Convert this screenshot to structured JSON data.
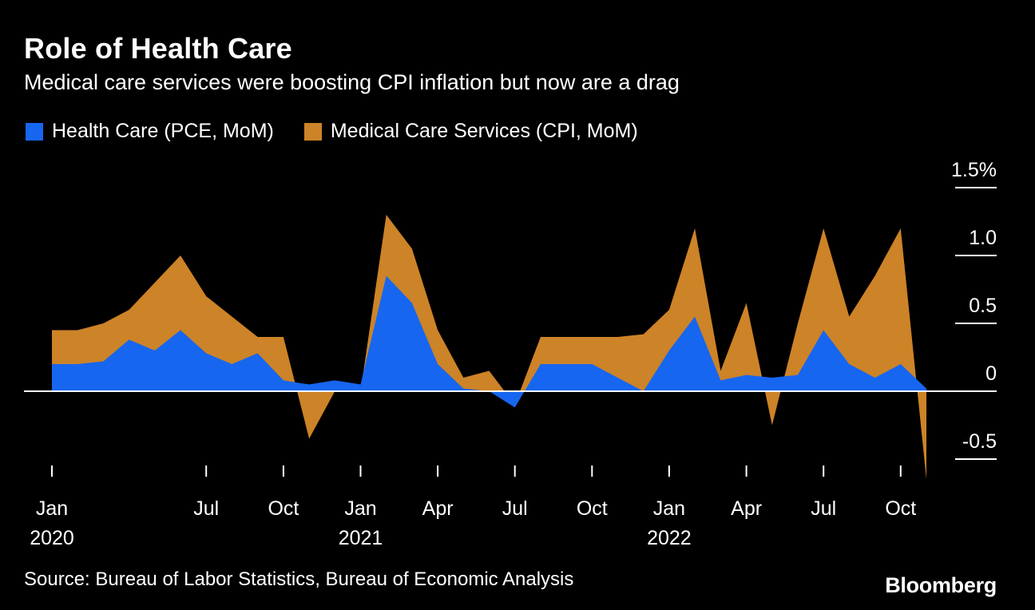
{
  "header": {
    "title": "Role of Health Care",
    "subtitle": "Medical care services were boosting CPI inflation but now are a drag"
  },
  "colors": {
    "background": "#000000",
    "foreground": "#ffffff",
    "blue": "#1766f0",
    "orange": "#cd8327"
  },
  "chart_data": {
    "type": "area",
    "title": "Role of Health Care",
    "subtitle": "Medical care services were boosting CPI inflation but now are a drag",
    "unit": "%",
    "baseline": 0,
    "legend_position": "top-left",
    "grid": "right-edge-ticks-only",
    "ylim": [
      -0.75,
      1.6
    ],
    "x": [
      "Jan 2020",
      "Feb 2020",
      "Mar 2020",
      "Apr 2020",
      "May 2020",
      "Jun 2020",
      "Jul 2020",
      "Aug 2020",
      "Sep 2020",
      "Oct 2020",
      "Nov 2020",
      "Dec 2020",
      "Jan 2021",
      "Feb 2021",
      "Mar 2021",
      "Apr 2021",
      "May 2021",
      "Jun 2021",
      "Jul 2021",
      "Aug 2021",
      "Sep 2021",
      "Oct 2021",
      "Nov 2021",
      "Dec 2021",
      "Jan 2022",
      "Feb 2022",
      "Mar 2022",
      "Apr 2022",
      "May 2022",
      "Jun 2022",
      "Jul 2022",
      "Aug 2022",
      "Sep 2022",
      "Oct 2022",
      "Nov 2022"
    ],
    "series": [
      {
        "name": "Health Care (PCE, MoM)",
        "color": "#1766f0",
        "values": [
          0.2,
          0.2,
          0.22,
          0.38,
          0.3,
          0.45,
          0.28,
          0.2,
          0.28,
          0.08,
          0.05,
          0.08,
          0.05,
          0.85,
          0.65,
          0.2,
          0.02,
          0.0,
          -0.12,
          0.2,
          0.2,
          0.2,
          0.1,
          0.0,
          0.3,
          0.55,
          0.08,
          0.12,
          0.1,
          0.12,
          0.45,
          0.2,
          0.1,
          0.2,
          0.02
        ]
      },
      {
        "name": "Medical Care Services (CPI, MoM)",
        "color": "#cd8327",
        "values": [
          0.45,
          0.45,
          0.5,
          0.6,
          0.8,
          1.0,
          0.7,
          0.55,
          0.4,
          0.4,
          -0.35,
          0.0,
          0.0,
          1.3,
          1.05,
          0.45,
          0.1,
          0.15,
          -0.1,
          0.4,
          0.4,
          0.4,
          0.4,
          0.42,
          0.6,
          1.2,
          0.15,
          0.65,
          -0.25,
          0.5,
          1.2,
          0.55,
          0.85,
          1.2,
          -0.65
        ]
      }
    ],
    "yticks": [
      {
        "value": 1.5,
        "label": "1.5%"
      },
      {
        "value": 1.0,
        "label": "1.0"
      },
      {
        "value": 0.5,
        "label": "0.5"
      },
      {
        "value": 0,
        "label": "0"
      },
      {
        "value": -0.5,
        "label": "-0.5"
      }
    ],
    "xticks": [
      {
        "index": 0,
        "label": "Jan",
        "year": "2020"
      },
      {
        "index": 6,
        "label": "Jul"
      },
      {
        "index": 9,
        "label": "Oct"
      },
      {
        "index": 12,
        "label": "Jan",
        "year": "2021"
      },
      {
        "index": 15,
        "label": "Apr"
      },
      {
        "index": 18,
        "label": "Jul"
      },
      {
        "index": 21,
        "label": "Oct"
      },
      {
        "index": 24,
        "label": "Jan",
        "year": "2022"
      },
      {
        "index": 27,
        "label": "Apr"
      },
      {
        "index": 30,
        "label": "Jul"
      },
      {
        "index": 33,
        "label": "Oct"
      }
    ]
  },
  "footer": {
    "source": "Source: Bureau of Labor Statistics, Bureau of Economic Analysis",
    "logo": "Bloomberg"
  }
}
